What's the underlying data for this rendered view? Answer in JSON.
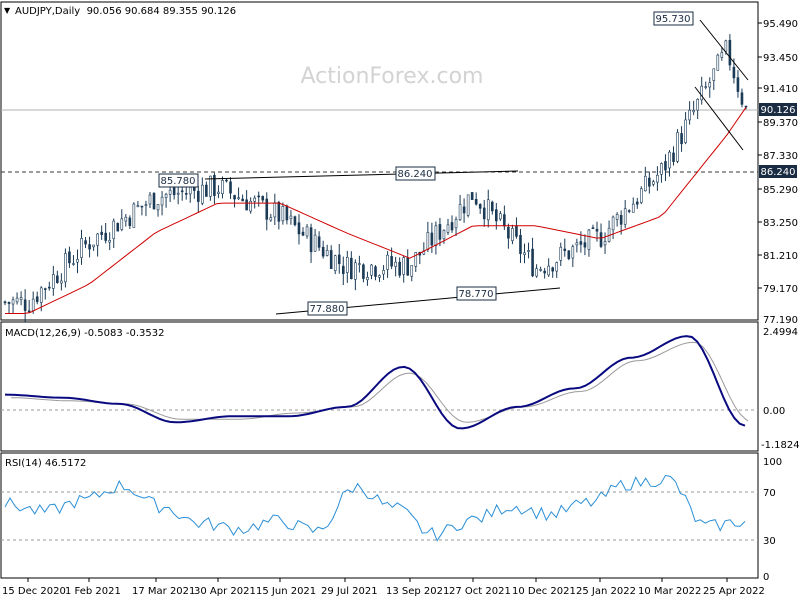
{
  "header": {
    "symbol_line": "AUDJPY,Daily  90.056 90.684 89.355 90.126",
    "watermark": "ActionForex.com"
  },
  "panels": {
    "price": {
      "y_ticks": [
        "95.490",
        "93.450",
        "91.410",
        "89.370",
        "87.330",
        "85.290",
        "83.250",
        "81.210",
        "79.170",
        "77.190"
      ],
      "current_price_badge": "90.126",
      "level_badge": "86.240",
      "annotations": [
        "95.730",
        "85.780",
        "86.240",
        "77.880",
        "78.770"
      ]
    },
    "macd": {
      "title": "MACD(12,26,9) -0.5083 -0.3532",
      "y_ticks": [
        "2.4994",
        "0.00",
        "-1.1824"
      ]
    },
    "rsi": {
      "title": "RSI(14) 46.5172",
      "y_ticks": [
        "100",
        "70",
        "30",
        "0"
      ]
    }
  },
  "x_axis_labels": [
    "15 Dec 2020",
    "1 Feb 2021",
    "17 Mar 2021",
    "30 Apr 2021",
    "15 Jun 2021",
    "29 Jul 2021",
    "13 Sep 2021",
    "27 Oct 2021",
    "10 Dec 2021",
    "25 Jan 2022",
    "10 Mar 2022",
    "25 Apr 2022"
  ],
  "colors": {
    "candle": "#1a3a56",
    "sma": "#d00000",
    "macd_line": "#0a0a80",
    "macd_signal": "#999999",
    "rsi_line": "#2b8fd6",
    "grid_dash": "#9a9a9a",
    "badge_bg": "#1a2c42"
  },
  "chart_data": [
    {
      "type": "candlestick",
      "title": "AUDJPY,Daily",
      "ohlc_last": {
        "open": 90.056,
        "high": 90.684,
        "low": 89.355,
        "close": 90.126
      },
      "ylim": [
        77.19,
        96.5
      ],
      "x_labels": [
        "15 Dec 2020",
        "1 Feb 2021",
        "17 Mar 2021",
        "30 Apr 2021",
        "15 Jun 2021",
        "29 Jul 2021",
        "13 Sep 2021",
        "27 Oct 2021",
        "10 Dec 2021",
        "25 Jan 2022",
        "10 Mar 2022",
        "25 Apr 2022"
      ],
      "price_path": [
        [
          "15 Dec 2020",
          78.3
        ],
        [
          "1 Feb 2021",
          82.0
        ],
        [
          "17 Mar 2021",
          84.8
        ],
        [
          "30 Apr 2021",
          85.4
        ],
        [
          "15 Jun 2021",
          83.6
        ],
        [
          "29 Jul 2021",
          80.5
        ],
        [
          "13 Sep 2021",
          80.6
        ],
        [
          "27 Oct 2021",
          85.0
        ],
        [
          "10 Dec 2021",
          80.4
        ],
        [
          "25 Jan 2022",
          82.3
        ],
        [
          "10 Mar 2022",
          86.4
        ],
        [
          "25 Apr 2022",
          93.8
        ],
        [
          "end",
          90.126
        ]
      ],
      "moving_average_path": [
        [
          "15 Dec 2020",
          77.6
        ],
        [
          "1 Feb 2021",
          79.4
        ],
        [
          "17 Mar 2021",
          82.6
        ],
        [
          "30 Apr 2021",
          84.4
        ],
        [
          "15 Jun 2021",
          84.4
        ],
        [
          "29 Jul 2021",
          82.6
        ],
        [
          "13 Sep 2021",
          81.0
        ],
        [
          "27 Oct 2021",
          83.0
        ],
        [
          "10 Dec 2021",
          83.0
        ],
        [
          "25 Jan 2022",
          82.2
        ],
        [
          "10 Mar 2022",
          83.6
        ],
        [
          "25 Apr 2022",
          88.6
        ],
        [
          "end",
          90.3
        ]
      ],
      "horizontal_levels": [
        86.24,
        90.126
      ],
      "annotated_levels": [
        95.73,
        85.78,
        86.24,
        77.88,
        78.77
      ],
      "trendlines": [
        {
          "from": [
            85.78,
            85.78
          ],
          "to": [
            86.24,
            86.3
          ]
        },
        {
          "from": [
            77.88,
            77.9
          ],
          "to": [
            78.77,
            79.0
          ]
        },
        {
          "from": [
            95.73,
            95.7
          ],
          "to": [
            "end",
            92.0
          ]
        },
        {
          "from": [
            92.8,
            92.8
          ],
          "to": [
            "end",
            87.6
          ]
        }
      ]
    },
    {
      "type": "line",
      "title": "MACD(12,26,9) -0.5083 -0.3532",
      "ylim": [
        -1.1824,
        2.4994
      ],
      "series": [
        {
          "name": "MACD",
          "values": [
            0.5,
            0.4,
            0.2,
            -0.4,
            -0.2,
            -0.2,
            0.1,
            1.4,
            -0.6,
            0.1,
            0.7,
            1.7,
            2.4,
            -0.5083
          ]
        },
        {
          "name": "Signal",
          "values": [
            0.4,
            0.3,
            0.2,
            -0.3,
            -0.3,
            -0.1,
            0.1,
            1.2,
            -0.4,
            0.1,
            0.6,
            1.6,
            2.2,
            -0.3532
          ]
        }
      ]
    },
    {
      "type": "line",
      "title": "RSI(14) 46.5172",
      "ylim": [
        0,
        100
      ],
      "reference_levels": [
        70,
        30
      ],
      "series": [
        {
          "name": "RSI(14)",
          "values": [
            62,
            55,
            65,
            78,
            60,
            45,
            40,
            47,
            38,
            77,
            58,
            35,
            48,
            60,
            53,
            63,
            80,
            84,
            42,
            46.5172
          ]
        }
      ]
    }
  ]
}
